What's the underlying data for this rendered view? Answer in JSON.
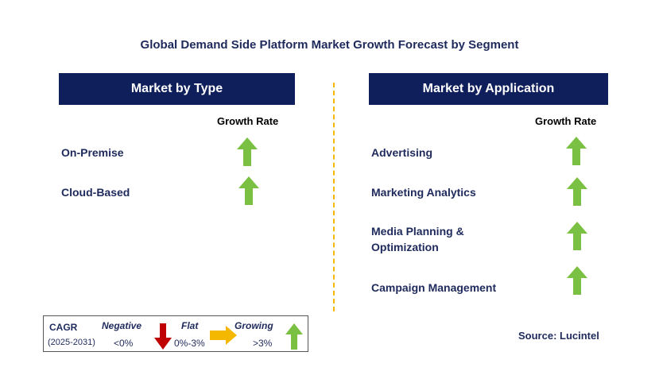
{
  "title": "Global Demand Side Platform Market Growth Forecast by Segment",
  "left_panel": {
    "header": "Market by Type",
    "growth_label": "Growth Rate",
    "rows": [
      {
        "label": "On-Premise",
        "trend": "growing"
      },
      {
        "label": "Cloud-Based",
        "trend": "growing"
      }
    ]
  },
  "right_panel": {
    "header": "Market by Application",
    "growth_label": "Growth Rate",
    "rows": [
      {
        "label": "Advertising",
        "trend": "growing"
      },
      {
        "label": "Marketing Analytics",
        "trend": "growing"
      },
      {
        "label_line1": "Media Planning &",
        "label_line2": "Optimization",
        "trend": "growing"
      },
      {
        "label": "Campaign Management",
        "trend": "growing"
      }
    ]
  },
  "legend": {
    "cagr": "CAGR",
    "period": "(2025-2031)",
    "negative": "Negative",
    "negative_range": "<0%",
    "flat": "Flat",
    "flat_range": "0%-3%",
    "growing": "Growing",
    "growing_range": ">3%"
  },
  "source": "Source: Lucintel",
  "colors": {
    "header_bg": "#0f1f5c",
    "growing": "#7ac143",
    "negative": "#c00000",
    "flat": "#f5b800",
    "text": "#1f2a5c"
  },
  "icons": {
    "growing": "green-up-arrow-icon",
    "negative": "red-down-arrow-icon",
    "flat": "yellow-right-arrow-icon"
  }
}
